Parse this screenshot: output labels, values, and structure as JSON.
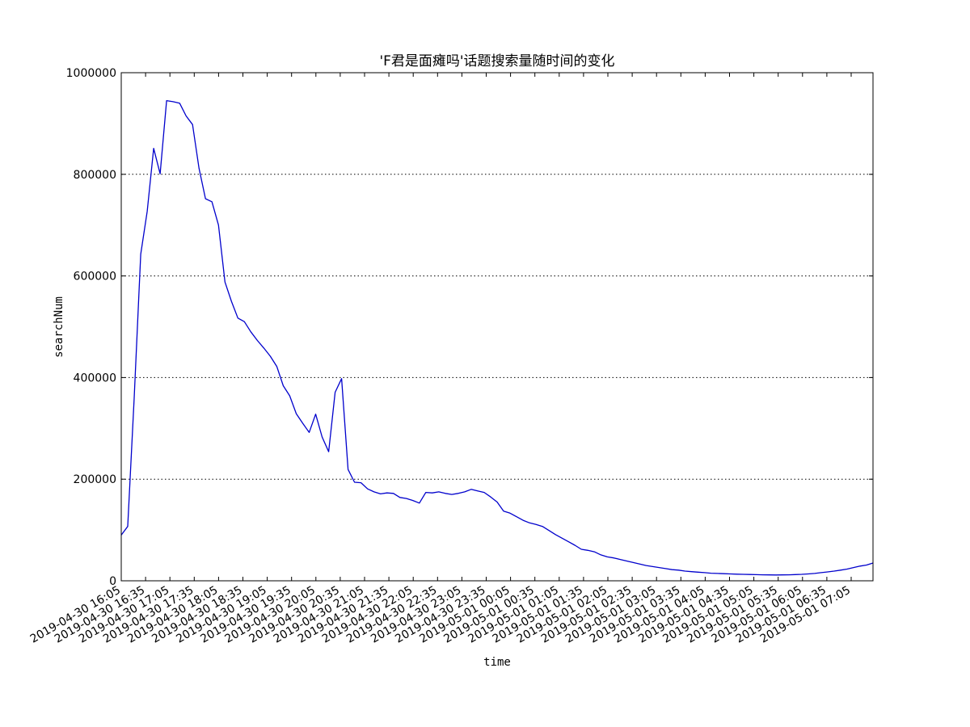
{
  "chart_data": {
    "type": "line",
    "title": "'F君是面瘫吗'话题搜索量随时间的变化",
    "xlabel": "time",
    "ylabel": "searchNum",
    "ylim": [
      0,
      1000000
    ],
    "yticks": [
      0,
      200000,
      400000,
      600000,
      800000,
      1000000
    ],
    "ytick_labels": [
      "0",
      "200000",
      "400000",
      "600000",
      "800000",
      "1000000"
    ],
    "xticks": [
      "2019-04-30 16:05",
      "2019-04-30 16:35",
      "2019-04-30 17:05",
      "2019-04-30 17:35",
      "2019-04-30 18:05",
      "2019-04-30 18:35",
      "2019-04-30 19:05",
      "2019-04-30 19:35",
      "2019-04-30 20:05",
      "2019-04-30 20:35",
      "2019-04-30 21:05",
      "2019-04-30 21:35",
      "2019-04-30 22:05",
      "2019-04-30 22:35",
      "2019-04-30 23:05",
      "2019-04-30 23:35",
      "2019-05-01 00:05",
      "2019-05-01 00:35",
      "2019-05-01 01:05",
      "2019-05-01 01:35",
      "2019-05-01 02:05",
      "2019-05-01 02:35",
      "2019-05-01 03:05",
      "2019-05-01 03:35",
      "2019-05-01 04:05",
      "2019-05-01 04:35",
      "2019-05-01 05:05",
      "2019-05-01 05:35",
      "2019-05-01 06:05",
      "2019-05-01 06:35",
      "2019-05-01 07:05"
    ],
    "grid": "horizontal dotted",
    "series": [
      {
        "color": "#0000cc",
        "values": [
          90000,
          107000,
          360000,
          643000,
          727000,
          851000,
          801000,
          945000,
          943000,
          940000,
          915000,
          898000,
          812000,
          752000,
          746000,
          700000,
          588000,
          550000,
          517000,
          510000,
          490000,
          473000,
          458000,
          442000,
          422000,
          384000,
          364000,
          329000,
          310000,
          292000,
          328000,
          283000,
          254000,
          371000,
          398000,
          219000,
          194000,
          193000,
          181000,
          175000,
          171000,
          173000,
          172000,
          164000,
          162000,
          158000,
          153000,
          174000,
          173000,
          175000,
          172000,
          170000,
          172000,
          175000,
          180000,
          177000,
          174000,
          165000,
          155000,
          137000,
          133000,
          126000,
          119000,
          114000,
          111000,
          107000,
          99000,
          91000,
          84000,
          77000,
          70000,
          62000,
          60000,
          57000,
          51000,
          47000,
          45000,
          42000,
          39000,
          36000,
          33000,
          30000,
          28000,
          26000,
          24000,
          22000,
          21000,
          19000,
          18000,
          17000,
          16000,
          15000,
          14500,
          14000,
          13500,
          13000,
          12700,
          12400,
          12100,
          11800,
          11600,
          11500,
          11600,
          11800,
          12200,
          12700,
          13500,
          14500,
          16000,
          17500,
          19000,
          21000,
          23000,
          26000,
          29000,
          31000,
          35000
        ]
      }
    ]
  }
}
